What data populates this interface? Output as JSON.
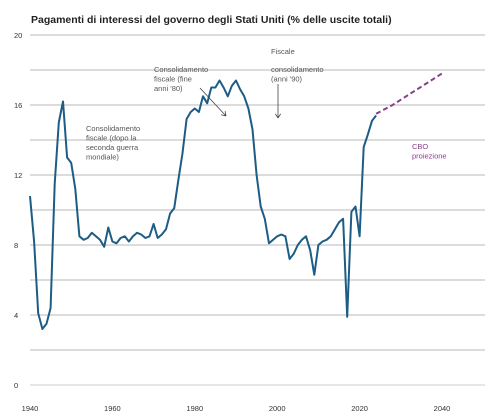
{
  "chart_data": {
    "type": "line",
    "title": "Pagamenti di interessi del governo degli Stati Uniti (% delle uscite totali)",
    "xlabel": "",
    "ylabel": "",
    "xlim": [
      1940,
      2040
    ],
    "ylim": [
      0,
      20
    ],
    "y_ticks": [
      "0",
      "4",
      "8",
      "12",
      "16",
      "20"
    ],
    "x_ticks": [
      "1940",
      "1960",
      "1980",
      "2000",
      "2020",
      "2040"
    ],
    "grid": "horizontal",
    "colors": {
      "series": "#1d5c85",
      "projection": "#8a3f8a",
      "grid": "#a0a0a0"
    },
    "series": [
      {
        "x": [
          1940,
          1941,
          1942,
          1943,
          1944,
          1945,
          1946,
          1947,
          1948,
          1949,
          1950,
          1951,
          1952,
          1953,
          1954,
          1955,
          1956,
          1957,
          1958,
          1959,
          1960,
          1961,
          1962,
          1963,
          1964,
          1965,
          1966,
          1967,
          1968,
          1969,
          1970,
          1971,
          1972,
          1973,
          1974,
          1975,
          1976,
          1977,
          1978,
          1979,
          1980,
          1981,
          1982,
          1983,
          1984,
          1985,
          1986,
          1987,
          1988,
          1989,
          1990,
          1991,
          1992,
          1993,
          1994,
          1995,
          1996,
          1997,
          1998,
          1999,
          2000,
          2001,
          2002,
          2003,
          2004,
          2005,
          2006,
          2007,
          2008,
          2009,
          2010,
          2011,
          2012,
          2013,
          2014,
          2015,
          2016,
          2017,
          2018,
          2019,
          2020,
          2021,
          2022,
          2023,
          2024
        ],
        "values": [
          10.8,
          8.2,
          4.1,
          3.2,
          3.5,
          4.4,
          11.5,
          15.0,
          16.2,
          13.0,
          12.7,
          11.2,
          8.5,
          8.3,
          8.4,
          8.7,
          8.5,
          8.3,
          7.9,
          9.0,
          8.2,
          8.1,
          8.4,
          8.5,
          8.2,
          8.5,
          8.7,
          8.6,
          8.4,
          8.5,
          9.2,
          8.4,
          8.6,
          8.9,
          9.8,
          10.1,
          11.7,
          13.2,
          15.2,
          15.6,
          15.8,
          15.6,
          16.5,
          16.1,
          17.0,
          17.0,
          17.4,
          17.0,
          16.5,
          17.1,
          17.4,
          16.9,
          16.5,
          15.8,
          14.6,
          12.0,
          10.2,
          9.5,
          8.1,
          8.3,
          8.5,
          8.6,
          8.5,
          7.2,
          7.5,
          8.0,
          8.3,
          8.5,
          7.7,
          6.3,
          8.0,
          8.2,
          8.3,
          8.5,
          8.9,
          9.3,
          9.5,
          3.9,
          9.9,
          10.2,
          8.5,
          13.6,
          14.3,
          15.1,
          15.4
        ]
      },
      {
        "name": "CBO proiezione",
        "x": [
          2024,
          2028,
          2032,
          2036,
          2040
        ],
        "values": [
          15.5,
          16.0,
          16.6,
          17.2,
          17.8
        ]
      }
    ],
    "annotations": [
      {
        "lines": [
          "Consolidamento",
          "fiscale (dopo la",
          "seconda guerra",
          "mondiale)"
        ]
      },
      {
        "lines": [
          "Consolidamento",
          "fiscale (fine",
          "anni '80)"
        ]
      },
      {
        "lines": [
          "Fiscale"
        ]
      },
      {
        "lines": [
          "consolidamento",
          "(anni '90)"
        ]
      },
      {
        "lines": [
          "CBO",
          "proiezione"
        ]
      }
    ]
  }
}
